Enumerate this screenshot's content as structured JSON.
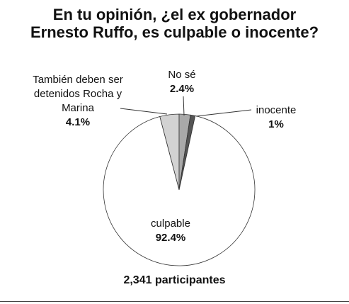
{
  "chart_data": {
    "type": "pie",
    "title": "En tu opinión, ¿el ex gobernador Ernesto Ruffo, es culpable o inocente?",
    "categories": [
      "También deben ser detenidos Rocha y Marina",
      "No sé",
      "inocente",
      "culpable"
    ],
    "values": [
      4.1,
      2.4,
      1,
      92.4
    ],
    "value_labels": [
      "4.1%",
      "2.4%",
      "1%",
      "92.4%"
    ],
    "colors": [
      "#d2d2d2",
      "#a9a9a9",
      "#555555",
      "#ffffff"
    ],
    "note": "2,341 participantes"
  }
}
